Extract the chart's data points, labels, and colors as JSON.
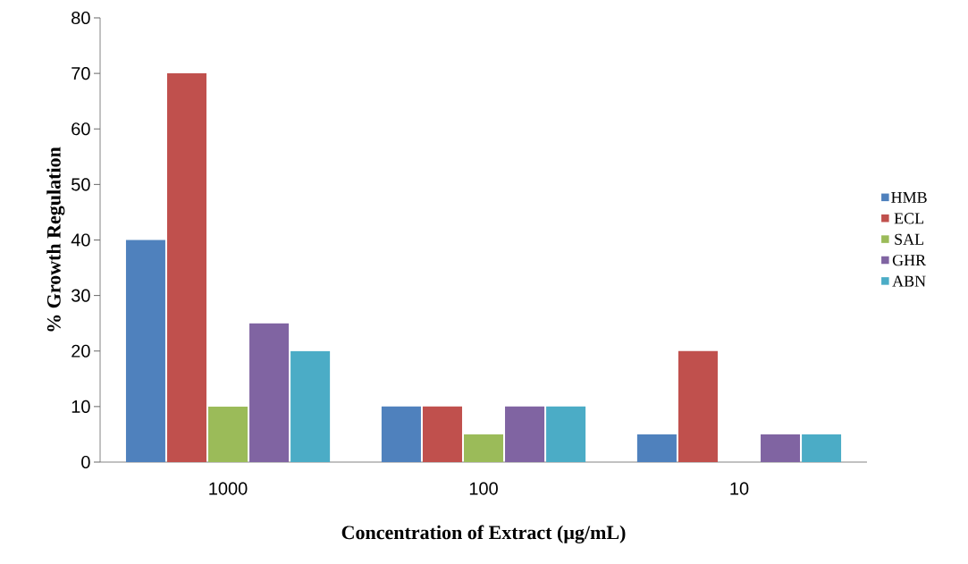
{
  "chart_data": {
    "type": "bar",
    "xlabel": "Concentration  of Extract (µg/mL)",
    "ylabel": "% Growth Regulation",
    "categories": [
      "1000",
      "100",
      "10"
    ],
    "series": [
      {
        "name": "HMB",
        "color": "#4f81bd",
        "values": [
          40,
          10,
          5
        ]
      },
      {
        "name": "ECL",
        "color": "#c0504d",
        "values": [
          70,
          10,
          20
        ]
      },
      {
        "name": "SAL",
        "color": "#9bbb59",
        "values": [
          10,
          5,
          0
        ]
      },
      {
        "name": "GHR",
        "color": "#8064a2",
        "values": [
          25,
          10,
          5
        ]
      },
      {
        "name": "ABN",
        "color": "#4bacc6",
        "values": [
          20,
          10,
          5
        ]
      }
    ],
    "ylim": [
      0,
      80
    ],
    "yticks": [
      0,
      10,
      20,
      30,
      40,
      50,
      60,
      70,
      80
    ],
    "legend": "right"
  }
}
